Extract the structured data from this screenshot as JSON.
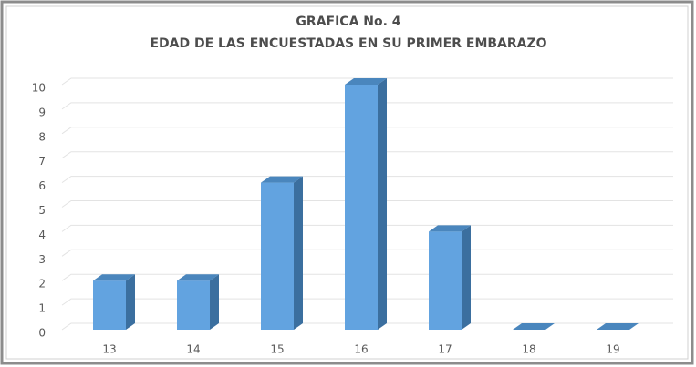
{
  "chart_data": {
    "type": "bar3d",
    "title": "GRAFICA No. 4",
    "subtitle": "EDAD DE LAS ENCUESTADAS EN SU PRIMER EMBARAZO",
    "categories": [
      "13",
      "14",
      "15",
      "16",
      "17",
      "18",
      "19"
    ],
    "values": [
      2,
      2,
      6,
      10,
      4,
      0,
      0
    ],
    "color": "#62a3e0",
    "ylim": [
      0,
      10
    ],
    "yticks": [
      0,
      1,
      2,
      3,
      4,
      5,
      6,
      7,
      8,
      9,
      10
    ],
    "grid": true
  }
}
